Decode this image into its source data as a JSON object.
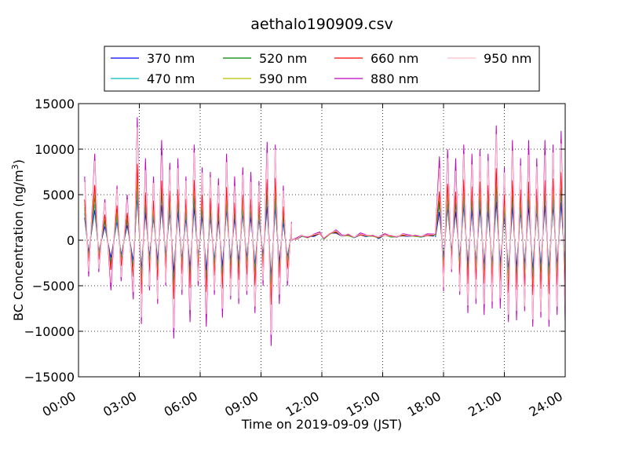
{
  "chart_data": {
    "type": "line",
    "title": "aethalo190909.csv",
    "xlabel": "Time on 2019-09-09 (JST)",
    "ylabel": "BC Concentration (ng/m",
    "ylabel_superscript": "3",
    "ylabel_close": ")",
    "xlim": [
      0,
      24
    ],
    "ylim": [
      -15000,
      15000
    ],
    "x_ticks": [
      0,
      3,
      6,
      9,
      12,
      15,
      18,
      21,
      24
    ],
    "x_tick_labels": [
      "00:00",
      "03:00",
      "06:00",
      "09:00",
      "12:00",
      "15:00",
      "18:00",
      "21:00",
      "24:00"
    ],
    "y_ticks": [
      -15000,
      -10000,
      -5000,
      0,
      5000,
      10000,
      15000
    ],
    "y_tick_labels": [
      "−15000",
      "−10000",
      "−5000",
      "0",
      "5000",
      "10000",
      "15000"
    ],
    "grid": true,
    "legend_position": "top-center",
    "series": [
      {
        "name": "370 nm",
        "color": "#0000ff",
        "scale": 0.35
      },
      {
        "name": "470 nm",
        "color": "#00bfbf",
        "scale": 0.42
      },
      {
        "name": "520 nm",
        "color": "#008000",
        "scale": 0.5
      },
      {
        "name": "590 nm",
        "color": "#bfbf00",
        "scale": 0.55
      },
      {
        "name": "660 nm",
        "color": "#ff0000",
        "scale": 0.62
      },
      {
        "name": "880 nm",
        "color": "#bf00bf",
        "scale": 1.0
      },
      {
        "name": "950 nm",
        "color": "#ffc0cb",
        "scale": 0.9
      }
    ],
    "segments": [
      {
        "x_start": 0.0,
        "x_end": 10.5,
        "mode": "oscillating",
        "peaks": [
          [
            0.3,
            7000
          ],
          [
            0.5,
            -4000
          ],
          [
            0.8,
            9500
          ],
          [
            1.0,
            -3500
          ],
          [
            1.3,
            4500
          ],
          [
            1.6,
            -5500
          ],
          [
            1.9,
            6000
          ],
          [
            2.1,
            -4500
          ],
          [
            2.4,
            5000
          ],
          [
            2.7,
            -6500
          ],
          [
            2.9,
            13500
          ],
          [
            3.1,
            -9200
          ],
          [
            3.3,
            9000
          ],
          [
            3.5,
            -5500
          ],
          [
            3.7,
            7000
          ],
          [
            3.9,
            -7000
          ],
          [
            4.1,
            11000
          ],
          [
            4.3,
            -5000
          ],
          [
            4.5,
            8500
          ],
          [
            4.7,
            -10800
          ],
          [
            4.9,
            9000
          ],
          [
            5.1,
            -6000
          ],
          [
            5.3,
            7000
          ],
          [
            5.5,
            -9000
          ],
          [
            5.7,
            10500
          ],
          [
            5.9,
            -5000
          ],
          [
            6.1,
            8000
          ],
          [
            6.3,
            -9500
          ],
          [
            6.5,
            7500
          ],
          [
            6.7,
            -6000
          ],
          [
            6.9,
            6800
          ],
          [
            7.1,
            -8500
          ],
          [
            7.3,
            9500
          ],
          [
            7.5,
            -6500
          ],
          [
            7.7,
            7000
          ],
          [
            7.9,
            -7000
          ],
          [
            8.1,
            8000
          ],
          [
            8.3,
            -6000
          ],
          [
            8.5,
            7500
          ],
          [
            8.7,
            -8000
          ],
          [
            8.9,
            6500
          ],
          [
            9.1,
            -5000
          ],
          [
            9.3,
            10800
          ],
          [
            9.5,
            -11600
          ],
          [
            9.7,
            10500
          ],
          [
            9.9,
            -7000
          ],
          [
            10.1,
            6000
          ],
          [
            10.3,
            -5000
          ],
          [
            10.5,
            2000
          ]
        ]
      },
      {
        "x_start": 10.5,
        "x_end": 17.6,
        "mode": "flat",
        "values": [
          [
            10.5,
            0
          ],
          [
            10.8,
            300
          ],
          [
            11.0,
            500
          ],
          [
            11.3,
            400
          ],
          [
            11.6,
            600
          ],
          [
            11.9,
            900
          ],
          [
            12.1,
            200
          ],
          [
            12.4,
            800
          ],
          [
            12.7,
            1100
          ],
          [
            13.0,
            500
          ],
          [
            13.3,
            700
          ],
          [
            13.6,
            300
          ],
          [
            13.9,
            800
          ],
          [
            14.2,
            500
          ],
          [
            14.5,
            600
          ],
          [
            14.8,
            300
          ],
          [
            15.1,
            700
          ],
          [
            15.4,
            500
          ],
          [
            15.7,
            400
          ],
          [
            16.0,
            700
          ],
          [
            16.3,
            500
          ],
          [
            16.6,
            600
          ],
          [
            16.9,
            400
          ],
          [
            17.2,
            700
          ],
          [
            17.5,
            600
          ],
          [
            17.6,
            800
          ]
        ]
      },
      {
        "x_start": 17.6,
        "x_end": 24.0,
        "mode": "oscillating",
        "peaks": [
          [
            17.6,
            1000
          ],
          [
            17.8,
            9200
          ],
          [
            18.0,
            -5600
          ],
          [
            18.2,
            10000
          ],
          [
            18.4,
            -3500
          ],
          [
            18.6,
            9000
          ],
          [
            18.8,
            -6000
          ],
          [
            19.0,
            10500
          ],
          [
            19.2,
            -8000
          ],
          [
            19.4,
            9500
          ],
          [
            19.6,
            -7000
          ],
          [
            19.8,
            10000
          ],
          [
            20.0,
            -8200
          ],
          [
            20.2,
            9500
          ],
          [
            20.4,
            -7500
          ],
          [
            20.6,
            12600
          ],
          [
            20.8,
            -7500
          ],
          [
            21.0,
            8000
          ],
          [
            21.2,
            -9000
          ],
          [
            21.4,
            11000
          ],
          [
            21.6,
            -8800
          ],
          [
            21.8,
            9000
          ],
          [
            22.0,
            -7800
          ],
          [
            22.2,
            11000
          ],
          [
            22.4,
            -9500
          ],
          [
            22.6,
            9000
          ],
          [
            22.8,
            -8500
          ],
          [
            23.0,
            11000
          ],
          [
            23.2,
            -9500
          ],
          [
            23.4,
            10500
          ],
          [
            23.6,
            -8200
          ],
          [
            23.8,
            12000
          ],
          [
            24.0,
            -9000
          ]
        ]
      }
    ]
  }
}
